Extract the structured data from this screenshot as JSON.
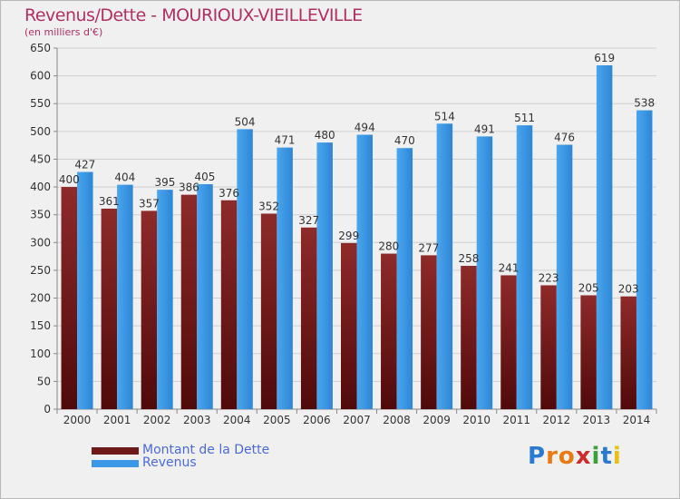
{
  "title": "Revenus/Dette - MOURIOUX-VIEILLEVILLE",
  "subtitle": "(en milliers d'€)",
  "logo": {
    "letters": [
      "P",
      "r",
      "o",
      "x",
      "i",
      "t",
      "i"
    ],
    "colors": [
      "#2a7ad0",
      "#e87a10",
      "#e87a10",
      "#d02a2a",
      "#3aa03a",
      "#2a7ad0",
      "#e8c010"
    ]
  },
  "colors": {
    "dette": "#6e1a1a",
    "revenus": "#3a98e6",
    "axis_text": "#333333",
    "grid": "#cfcfcf"
  },
  "chart_data": {
    "type": "bar",
    "categories": [
      "2000",
      "2001",
      "2002",
      "2003",
      "2004",
      "2005",
      "2006",
      "2007",
      "2008",
      "2009",
      "2010",
      "2011",
      "2012",
      "2013",
      "2014"
    ],
    "series": [
      {
        "name": "Montant de la Dette",
        "values": [
          400,
          361,
          357,
          386,
          376,
          352,
          327,
          299,
          280,
          277,
          258,
          241,
          223,
          205,
          203
        ]
      },
      {
        "name": "Revenus",
        "values": [
          427,
          404,
          395,
          405,
          504,
          471,
          480,
          494,
          470,
          514,
          491,
          511,
          476,
          619,
          538
        ]
      }
    ],
    "ylim": [
      0,
      650
    ],
    "yticks": [
      0,
      50,
      100,
      150,
      200,
      250,
      300,
      350,
      400,
      450,
      500,
      550,
      600,
      650
    ],
    "grid": true,
    "legend_position": "bottom-left"
  }
}
